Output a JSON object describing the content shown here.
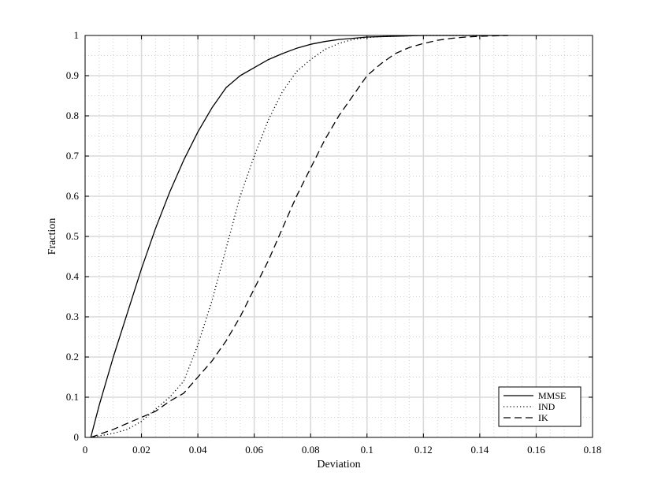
{
  "chart_data": {
    "type": "line",
    "title": "",
    "xlabel": "Deviation",
    "ylabel": "Fraction",
    "xlim": [
      0,
      0.18
    ],
    "ylim": [
      0,
      1
    ],
    "xticks": [
      "0",
      "0.02",
      "0.04",
      "0.06",
      "0.08",
      "0.1",
      "0.12",
      "0.14",
      "0.16",
      "0.18"
    ],
    "yticks": [
      "0",
      "0.1",
      "0.2",
      "0.3",
      "0.4",
      "0.5",
      "0.6",
      "0.7",
      "0.8",
      "0.9",
      "1"
    ],
    "grid": true,
    "minor_grid": true,
    "legend_position": "bottom-right",
    "series": [
      {
        "name": "MMSE",
        "style": "solid",
        "x": [
          0.002,
          0.005,
          0.01,
          0.015,
          0.02,
          0.025,
          0.03,
          0.035,
          0.04,
          0.045,
          0.05,
          0.055,
          0.06,
          0.065,
          0.07,
          0.075,
          0.08,
          0.085,
          0.09,
          0.095,
          0.1,
          0.105,
          0.11,
          0.115,
          0.12,
          0.13,
          0.14,
          0.15
        ],
        "y": [
          0,
          0.08,
          0.2,
          0.31,
          0.42,
          0.52,
          0.61,
          0.69,
          0.76,
          0.82,
          0.87,
          0.9,
          0.92,
          0.94,
          0.955,
          0.968,
          0.978,
          0.985,
          0.99,
          0.993,
          0.996,
          0.997,
          0.998,
          0.999,
          1,
          1,
          1,
          1
        ]
      },
      {
        "name": "IND",
        "style": "dotted",
        "x": [
          0.002,
          0.01,
          0.015,
          0.02,
          0.025,
          0.03,
          0.035,
          0.04,
          0.045,
          0.05,
          0.055,
          0.06,
          0.065,
          0.07,
          0.075,
          0.08,
          0.085,
          0.09,
          0.095,
          0.1,
          0.105,
          0.11,
          0.115,
          0.12,
          0.13,
          0.14
        ],
        "y": [
          0,
          0.01,
          0.02,
          0.04,
          0.07,
          0.1,
          0.14,
          0.23,
          0.34,
          0.47,
          0.6,
          0.7,
          0.79,
          0.86,
          0.91,
          0.94,
          0.965,
          0.98,
          0.99,
          0.995,
          0.997,
          0.998,
          0.999,
          1,
          1,
          1
        ]
      },
      {
        "name": "IK",
        "style": "dashed",
        "x": [
          0.002,
          0.01,
          0.015,
          0.02,
          0.025,
          0.03,
          0.035,
          0.04,
          0.045,
          0.05,
          0.055,
          0.06,
          0.065,
          0.07,
          0.075,
          0.08,
          0.085,
          0.09,
          0.095,
          0.1,
          0.105,
          0.11,
          0.115,
          0.12,
          0.125,
          0.13,
          0.135,
          0.14,
          0.15
        ],
        "y": [
          0,
          0.02,
          0.035,
          0.05,
          0.065,
          0.09,
          0.11,
          0.15,
          0.19,
          0.24,
          0.3,
          0.37,
          0.44,
          0.52,
          0.6,
          0.67,
          0.74,
          0.8,
          0.85,
          0.9,
          0.93,
          0.955,
          0.97,
          0.98,
          0.988,
          0.993,
          0.996,
          0.998,
          1
        ]
      }
    ]
  }
}
